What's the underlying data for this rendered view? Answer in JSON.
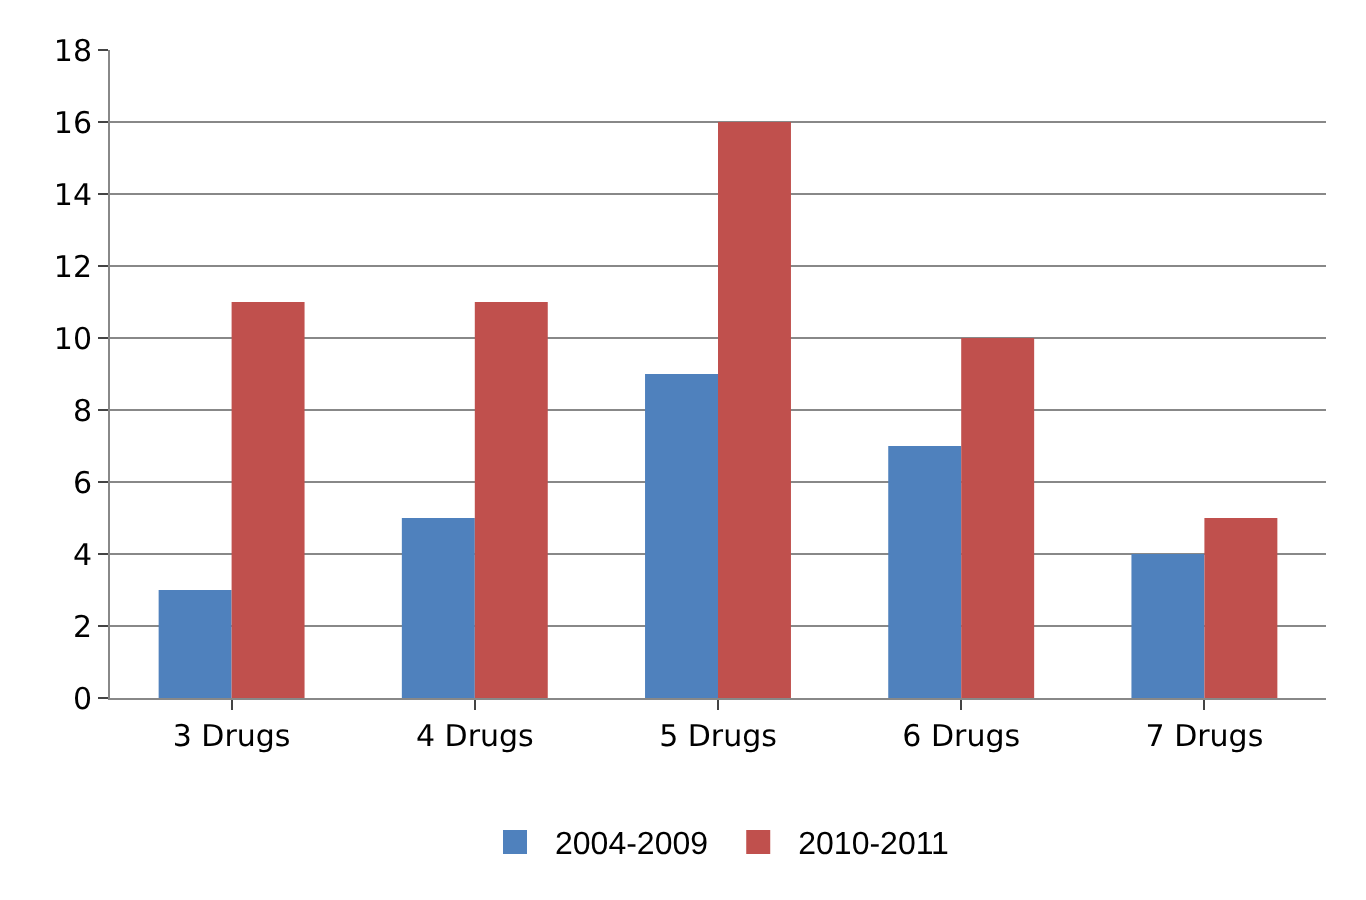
{
  "chart_data": {
    "type": "bar",
    "categories": [
      "3 Drugs",
      "4 Drugs",
      "5 Drugs",
      "6 Drugs",
      "7 Drugs"
    ],
    "series": [
      {
        "name": "2004-2009",
        "color": "#4f81bd",
        "values": [
          3,
          5,
          9,
          7,
          4
        ]
      },
      {
        "name": "2010-2011",
        "color": "#c0504d",
        "values": [
          11,
          11,
          16,
          10,
          5
        ]
      }
    ],
    "ylim": [
      0,
      18
    ],
    "yticks": [
      0,
      2,
      4,
      6,
      8,
      10,
      12,
      14,
      16,
      18
    ],
    "grid": "y",
    "legend": "bottom"
  }
}
